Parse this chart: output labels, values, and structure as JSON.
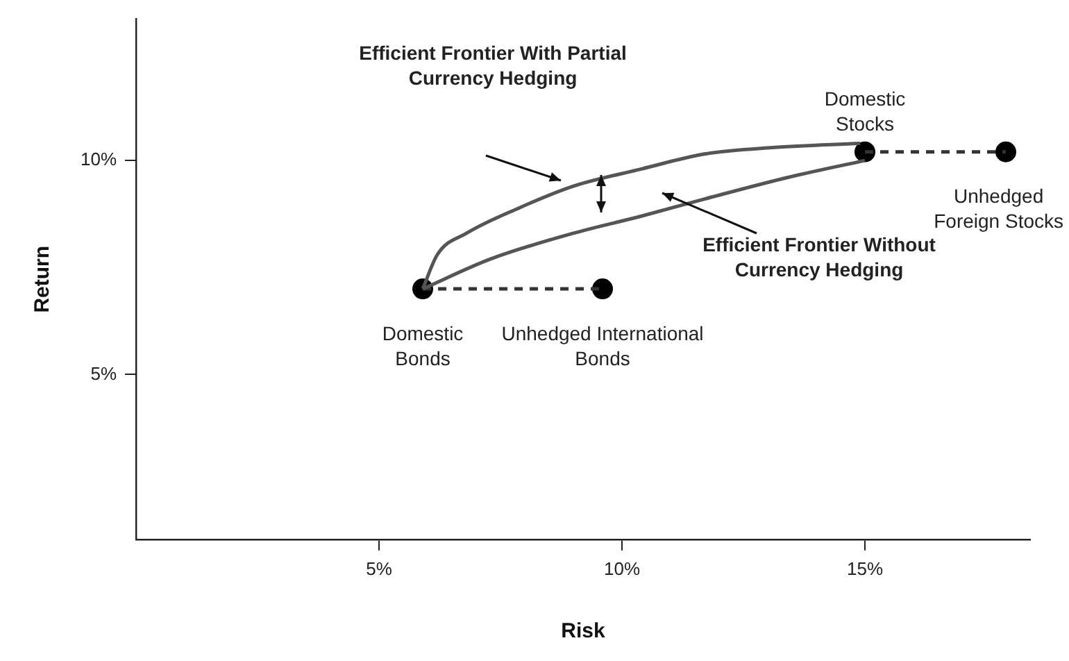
{
  "chart_data": {
    "type": "scatter",
    "xlabel": "Risk",
    "ylabel": "Return",
    "xlim": [
      0,
      18.4
    ],
    "ylim": [
      1.15,
      13.3
    ],
    "xticks": [
      {
        "value": 5,
        "label": "5%"
      },
      {
        "value": 10,
        "label": "10%"
      },
      {
        "value": 15,
        "label": "15%"
      }
    ],
    "yticks": [
      {
        "value": 5,
        "label": "5%"
      },
      {
        "value": 10,
        "label": "10%"
      }
    ],
    "grid": false,
    "legend": false,
    "series": [
      {
        "type": "line",
        "color": "#555555",
        "line_style": "solid",
        "marker": "none",
        "x": [
          5.9,
          6.2,
          6.8,
          7.9,
          9.0,
          10.4,
          11.7,
          13.1,
          14.9
        ],
        "values": [
          7.0,
          7.8,
          8.3,
          8.9,
          9.4,
          9.8,
          10.15,
          10.3,
          10.4
        ]
      },
      {
        "type": "line",
        "color": "#555555",
        "line_style": "solid",
        "marker": "none",
        "x": [
          5.9,
          7.3,
          9.0,
          10.4,
          11.7,
          13.4,
          15.0
        ],
        "values": [
          7.0,
          7.7,
          8.3,
          8.7,
          9.1,
          9.6,
          10.0
        ]
      },
      {
        "type": "line",
        "color": "#333333",
        "line_style": "dashed",
        "marker": "none",
        "x": [
          5.9,
          9.6
        ],
        "values": [
          7.0,
          7.0
        ]
      },
      {
        "type": "line",
        "color": "#333333",
        "line_style": "dashed",
        "marker": "none",
        "x": [
          15.0,
          17.9
        ],
        "values": [
          10.2,
          10.2
        ]
      },
      {
        "type": "scatter",
        "color": "#000000",
        "marker": "circle",
        "x": [
          5.9,
          9.6,
          15.0,
          17.9
        ],
        "values": [
          7.0,
          7.0,
          10.2,
          10.2
        ]
      }
    ],
    "annotations": [
      {
        "text": "Domestic Bonds",
        "x": 5.9,
        "y": 7.0
      },
      {
        "text": "Unhedged International Bonds",
        "x": 9.6,
        "y": 7.0
      },
      {
        "text": "Domestic Stocks",
        "x": 15.0,
        "y": 10.2
      },
      {
        "text": "Unhedged Foreign Stocks",
        "x": 17.9,
        "y": 10.2
      },
      "Efficient Frontier With Partial Currency Hedging",
      "Efficient Frontier Without Currency Hedging"
    ]
  }
}
